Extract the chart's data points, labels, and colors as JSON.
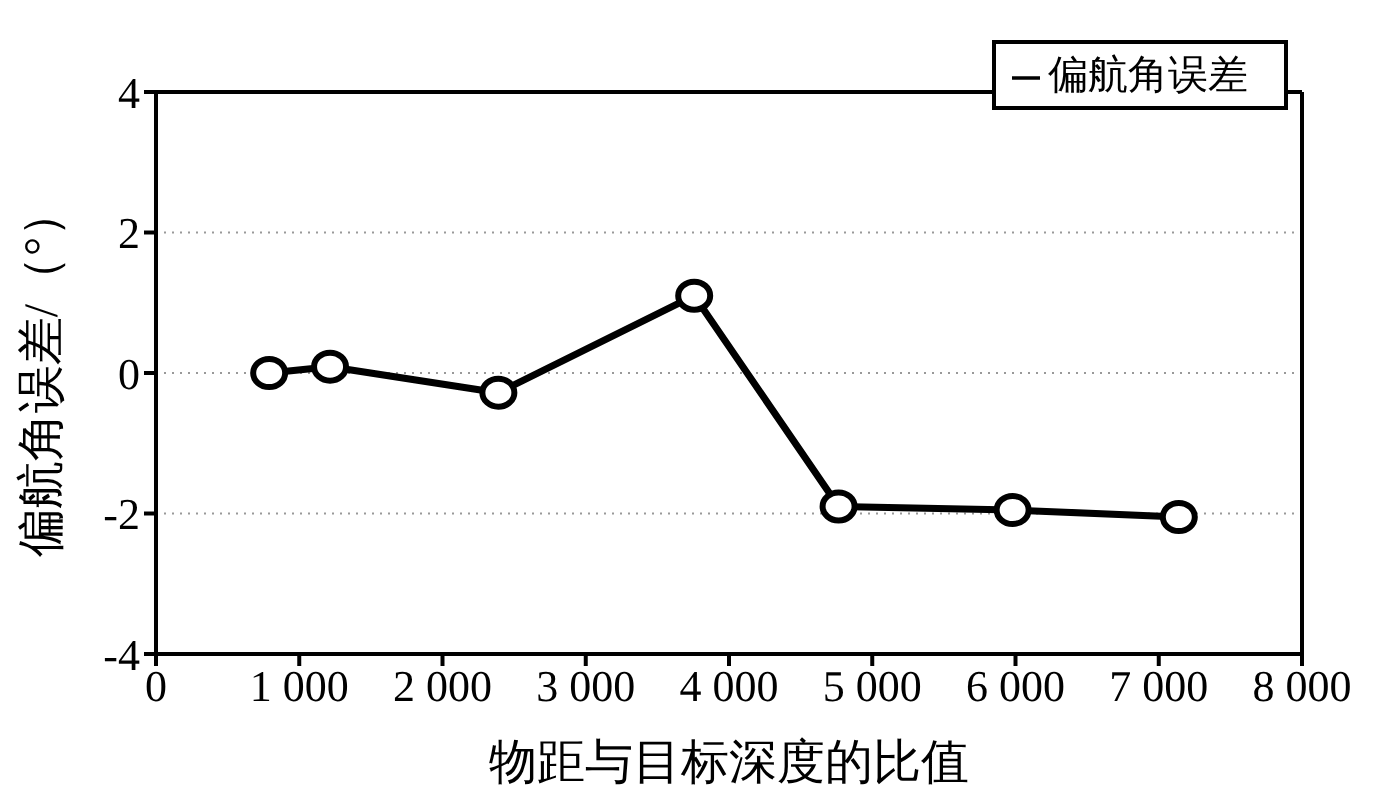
{
  "chart_data": {
    "type": "line",
    "xlabel": "物距与目标深度的比值",
    "ylabel": "偏航角误差/（°）",
    "x": [
      790,
      1215,
      2390,
      3757,
      4765,
      5980,
      7140
    ],
    "series": [
      {
        "name": "偏航角误差",
        "color": "#000000",
        "values": [
          0,
          0.09,
          -0.28,
          1.1,
          -1.9,
          -1.95,
          -2.05
        ]
      }
    ],
    "xlim": [
      0,
      8000
    ],
    "xticks": [
      0,
      {
        "value": 1000,
        "label": "1 000"
      },
      {
        "value": 2000,
        "label": "2 000"
      },
      {
        "value": 3000,
        "label": "3 000"
      },
      {
        "value": 4000,
        "label": "4 000"
      },
      {
        "value": 5000,
        "label": "5 000"
      },
      {
        "value": 6000,
        "label": "6 000"
      },
      {
        "value": 7000,
        "label": "7 000"
      },
      {
        "value": 8000,
        "label": "8 000"
      }
    ],
    "ylim": [
      -4,
      4
    ],
    "yticks": [
      -4,
      -2,
      0,
      2,
      4
    ],
    "grid": "y",
    "legend": "top right",
    "marker": "circle",
    "line_style": "solid"
  }
}
